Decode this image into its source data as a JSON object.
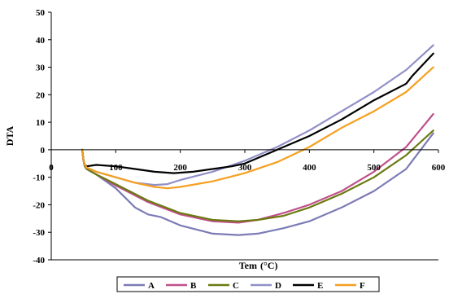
{
  "chart_data": {
    "type": "line",
    "title": "",
    "xlabel": "Tem",
    "xlabel_unit": "(°C)",
    "ylabel": "DTA",
    "xlim": [
      0,
      600
    ],
    "ylim": [
      -40,
      50
    ],
    "x_ticks": [
      "0",
      "100",
      "200",
      "300",
      "400",
      "500",
      "600"
    ],
    "y_ticks": [
      "-40",
      "-30",
      "-20",
      "-10",
      "0",
      "10",
      "20",
      "30",
      "40",
      "50"
    ],
    "grid": false,
    "legend_position": "bottom",
    "series": [
      {
        "name": "A",
        "color": "#7b7bb5",
        "x": [
          48,
          50,
          52,
          55,
          70,
          100,
          130,
          150,
          170,
          200,
          250,
          290,
          320,
          360,
          400,
          450,
          500,
          550,
          592
        ],
        "y": [
          0,
          -4,
          -6,
          -7,
          -9,
          -14,
          -21,
          -23.5,
          -24.5,
          -27.5,
          -30.5,
          -31,
          -30.5,
          -28.5,
          -26,
          -21,
          -15,
          -7,
          6
        ]
      },
      {
        "name": "B",
        "color": "#c0508a",
        "x": [
          48,
          50,
          52,
          55,
          70,
          100,
          150,
          200,
          250,
          290,
          320,
          360,
          400,
          450,
          500,
          550,
          592
        ],
        "y": [
          0,
          -4,
          -6,
          -7,
          -9,
          -13,
          -19,
          -23.5,
          -26,
          -26.5,
          -25.5,
          -23,
          -20,
          -15,
          -8,
          1,
          13
        ]
      },
      {
        "name": "C",
        "color": "#6b7a10",
        "x": [
          48,
          50,
          52,
          55,
          70,
          100,
          150,
          200,
          250,
          290,
          320,
          360,
          400,
          450,
          500,
          550,
          592
        ],
        "y": [
          0,
          -4,
          -6,
          -7,
          -9,
          -12.5,
          -18.5,
          -23,
          -25.5,
          -26,
          -25.5,
          -24,
          -21,
          -16,
          -10,
          -2,
          7
        ]
      },
      {
        "name": "D",
        "color": "#9090c8",
        "x": [
          48,
          50,
          52,
          55,
          70,
          100,
          130,
          160,
          180,
          200,
          250,
          300,
          350,
          400,
          450,
          500,
          550,
          592
        ],
        "y": [
          0,
          -4,
          -5.5,
          -6.5,
          -8,
          -10,
          -12,
          -12.8,
          -12.5,
          -11,
          -8,
          -4,
          1,
          7,
          14,
          21,
          29,
          38
        ]
      },
      {
        "name": "E",
        "color": "#000000",
        "x": [
          48,
          50,
          52,
          55,
          70,
          100,
          130,
          160,
          190,
          220,
          250,
          280,
          300,
          350,
          400,
          450,
          500,
          550,
          560,
          592
        ],
        "y": [
          0,
          -4,
          -5.5,
          -6,
          -5.5,
          -6,
          -7,
          -8,
          -8.5,
          -8,
          -7,
          -6,
          -5,
          0,
          5,
          11,
          18,
          24,
          27,
          35
        ]
      },
      {
        "name": "F",
        "color": "#f5a020",
        "x": [
          48,
          50,
          52,
          55,
          70,
          100,
          130,
          160,
          180,
          200,
          250,
          300,
          350,
          400,
          450,
          500,
          550,
          592
        ],
        "y": [
          0,
          -4,
          -5.5,
          -6.5,
          -8,
          -10,
          -12,
          -13.5,
          -14,
          -13.5,
          -11.5,
          -8.5,
          -4.5,
          1,
          8,
          14,
          21,
          30
        ]
      }
    ]
  }
}
